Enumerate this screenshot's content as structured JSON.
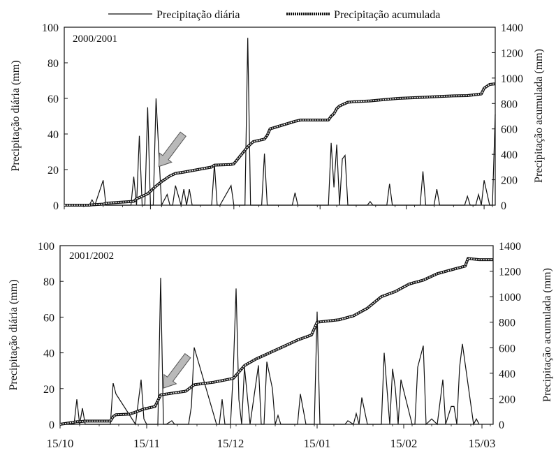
{
  "legend": {
    "daily_label": "Precipitação diária",
    "cumulative_label": "Precipitação acumulada"
  },
  "x_tick_labels": [
    "15/10",
    "15/11",
    "15/12",
    "15/01",
    "15/02",
    "15/03"
  ],
  "colors": {
    "line": "#111111",
    "marker_fill": "#eeeeee",
    "arrow": "#b9b9b9",
    "arrow_stroke": "#555555"
  },
  "chart_data": [
    {
      "type": "line",
      "panel_label": "2000/2001",
      "ylabel_left": "Precipitação diária (mm)",
      "ylabel_right": "Precipitação acumulada (mm)",
      "ylim_left": [
        0,
        100
      ],
      "ylim_right": [
        0,
        1400
      ],
      "y_ticks_left": [
        0,
        20,
        40,
        60,
        80,
        100
      ],
      "y_ticks_right": [
        0,
        200,
        400,
        600,
        800,
        1000,
        1200,
        1400
      ],
      "xlim": [
        0,
        155
      ],
      "x_ticks": [
        0,
        31,
        61,
        92,
        123,
        151
      ],
      "x_tick_labels": [
        "15/10",
        "15/11",
        "15/12",
        "15/01",
        "15/02",
        "15/03"
      ],
      "grid": false,
      "legend_position": "top",
      "series": [
        {
          "name": "Precipitação diária",
          "axis": "left",
          "x": [
            0,
            9,
            10,
            11,
            14,
            15,
            16,
            24,
            25,
            26,
            27,
            28,
            29,
            30,
            31,
            32,
            33,
            35,
            36,
            37,
            38,
            39,
            40,
            42,
            43,
            44,
            45,
            46,
            47,
            53,
            54,
            55,
            56,
            60,
            61,
            62,
            63,
            65,
            66,
            67,
            68,
            69,
            70,
            71,
            72,
            73,
            74,
            82,
            83,
            84,
            95,
            96,
            97,
            98,
            99,
            100,
            101,
            102,
            103,
            109,
            110,
            111,
            112,
            113,
            116,
            117,
            118,
            127,
            128,
            129,
            130,
            133,
            134,
            135,
            136,
            137,
            138,
            139,
            144,
            145,
            146,
            148,
            149,
            150,
            151,
            153,
            154,
            155
          ],
          "y": [
            0,
            0,
            3,
            0,
            14,
            0,
            0,
            0,
            16,
            0,
            39,
            0,
            0,
            55,
            0,
            0,
            60,
            0,
            3,
            6,
            0,
            0,
            11,
            0,
            9,
            0,
            9,
            0,
            0,
            0,
            23,
            0,
            0,
            11,
            0,
            0,
            0,
            0,
            94,
            0,
            0,
            0,
            0,
            0,
            29,
            0,
            0,
            0,
            7,
            0,
            0,
            35,
            10,
            34,
            0,
            26,
            28,
            0,
            0,
            0,
            2,
            0,
            0,
            0,
            0,
            12,
            0,
            0,
            0,
            19,
            0,
            0,
            9,
            0,
            0,
            0,
            0,
            0,
            0,
            5,
            0,
            0,
            6,
            0,
            14,
            0,
            0,
            51
          ]
        },
        {
          "name": "Precipitação acumulada",
          "axis": "right",
          "x": [
            0,
            9,
            10,
            14,
            15,
            25,
            26,
            28,
            30,
            31,
            33,
            35,
            38,
            40,
            43,
            48,
            53,
            54,
            60,
            61,
            66,
            68,
            72,
            73,
            74,
            80,
            83,
            85,
            95,
            96,
            97,
            98,
            99,
            100,
            101,
            102,
            105,
            110,
            115,
            120,
            125,
            130,
            135,
            140,
            145,
            150,
            151,
            153,
            155
          ],
          "y": [
            0,
            0,
            3,
            8,
            15,
            30,
            50,
            70,
            90,
            110,
            150,
            185,
            230,
            250,
            260,
            280,
            300,
            315,
            320,
            325,
            460,
            500,
            520,
            550,
            600,
            640,
            660,
            670,
            670,
            700,
            720,
            760,
            780,
            790,
            800,
            810,
            815,
            820,
            830,
            840,
            845,
            850,
            855,
            860,
            862,
            875,
            920,
            950,
            955
          ]
        }
      ],
      "annotations": [
        {
          "type": "arrow",
          "points_to_x": 33,
          "points_to_y_right": 260
        }
      ]
    },
    {
      "type": "line",
      "panel_label": "2001/2002",
      "ylabel_left": "Precipitação diária (mm)",
      "ylabel_right": "Precipitação acumulada (mm)",
      "ylim_left": [
        0,
        100
      ],
      "ylim_right": [
        0,
        1400
      ],
      "y_ticks_left": [
        0,
        20,
        40,
        60,
        80,
        100
      ],
      "y_ticks_right": [
        0,
        200,
        400,
        600,
        800,
        1000,
        1200,
        1400
      ],
      "xlim": [
        0,
        155
      ],
      "x_ticks": [
        0,
        31,
        61,
        92,
        123,
        151
      ],
      "x_tick_labels": [
        "15/10",
        "15/11",
        "15/12",
        "15/01",
        "15/02",
        "15/03"
      ],
      "grid": false,
      "legend_position": "top",
      "series": [
        {
          "name": "Precipitação diária",
          "axis": "left",
          "x": [
            0,
            5,
            6,
            7,
            8,
            9,
            15,
            16,
            18,
            19,
            20,
            27,
            29,
            30,
            31,
            35,
            36,
            37,
            38,
            40,
            41,
            42,
            43,
            46,
            47,
            48,
            56,
            57,
            58,
            59,
            60,
            61,
            62,
            63,
            64,
            65,
            66,
            68,
            71,
            72,
            73,
            74,
            76,
            77,
            78,
            79,
            80,
            85,
            86,
            88,
            91,
            92,
            93,
            94,
            102,
            103,
            105,
            106,
            107,
            108,
            110,
            111,
            114,
            115,
            116,
            118,
            119,
            120,
            121,
            122,
            126,
            127,
            128,
            130,
            131,
            133,
            135,
            137,
            138,
            140,
            141,
            142,
            143,
            144,
            148,
            149,
            150
          ],
          "y": [
            0,
            0,
            14,
            0,
            9,
            0,
            0,
            0,
            0,
            23,
            17,
            0,
            25,
            3,
            0,
            0,
            82,
            0,
            0,
            2,
            0,
            0,
            0,
            0,
            10,
            43,
            0,
            0,
            14,
            0,
            0,
            0,
            30,
            76,
            14,
            0,
            32,
            0,
            33,
            0,
            0,
            35,
            20,
            0,
            5,
            0,
            0,
            0,
            17,
            0,
            0,
            63,
            0,
            0,
            0,
            2,
            0,
            6,
            0,
            15,
            0,
            0,
            0,
            0,
            40,
            0,
            31,
            20,
            0,
            25,
            0,
            0,
            32,
            44,
            0,
            3,
            0,
            25,
            0,
            10,
            10,
            0,
            32,
            45,
            0,
            3,
            0
          ]
        },
        {
          "name": "Precipitação acumulada",
          "axis": "right",
          "x": [
            0,
            6,
            7,
            9,
            10,
            18,
            19,
            20,
            25,
            30,
            34,
            36,
            45,
            48,
            55,
            62,
            66,
            70,
            75,
            80,
            85,
            90,
            92,
            100,
            105,
            110,
            115,
            120,
            125,
            130,
            135,
            140,
            145,
            146,
            150,
            155
          ],
          "y": [
            0,
            20,
            20,
            25,
            25,
            25,
            60,
            75,
            80,
            120,
            140,
            230,
            260,
            310,
            330,
            360,
            460,
            510,
            560,
            610,
            660,
            700,
            800,
            820,
            850,
            910,
            1000,
            1040,
            1100,
            1130,
            1180,
            1210,
            1240,
            1300,
            1290,
            1290
          ]
        }
      ],
      "annotations": [
        {
          "type": "arrow",
          "points_to_x": 36,
          "points_to_y_right": 240
        }
      ]
    }
  ]
}
